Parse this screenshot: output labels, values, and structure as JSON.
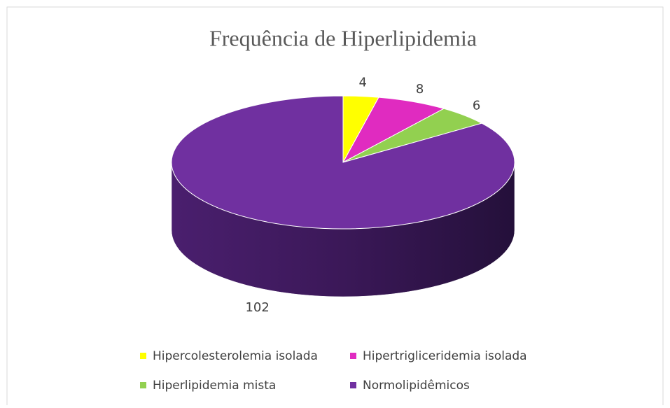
{
  "chart_data": {
    "type": "pie",
    "title": "Frequência de Hiperlipidemia",
    "categories": [
      "Hipercolesterolemia isolada",
      "Hipertrigliceridemia isolada",
      "Hiperlipidemia mista",
      "Normolipidêmicos"
    ],
    "values": [
      4,
      8,
      6,
      102
    ],
    "colors": [
      "#ffff00",
      "#e02bc0",
      "#92d050",
      "#7030a0"
    ],
    "legend": "bottom"
  }
}
